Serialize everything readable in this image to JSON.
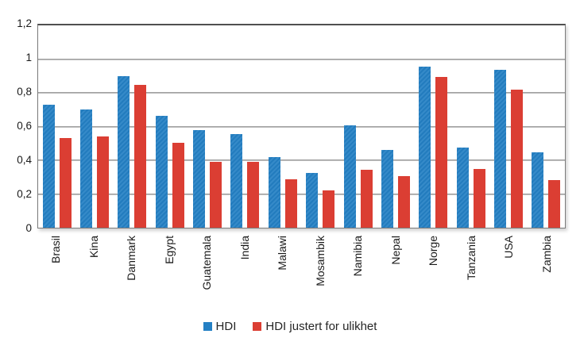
{
  "chart_data": {
    "type": "bar",
    "categories": [
      "Brasil",
      "Kina",
      "Danmark",
      "Egypt",
      "Guatemala",
      "India",
      "Malawi",
      "Mosambik",
      "Namibia",
      "Nepal",
      "Norge",
      "Tanzania",
      "USA",
      "Zambia"
    ],
    "series": [
      {
        "name": "HDI",
        "color": "#2480C4",
        "values": [
          0.73,
          0.699,
          0.901,
          0.662,
          0.581,
          0.554,
          0.418,
          0.327,
          0.608,
          0.463,
          0.955,
          0.476,
          0.937,
          0.448
        ]
      },
      {
        "name": "HDI justert for ulikhet",
        "color": "#DB3E33",
        "values": [
          0.531,
          0.543,
          0.845,
          0.503,
          0.389,
          0.392,
          0.287,
          0.22,
          0.344,
          0.304,
          0.894,
          0.346,
          0.821,
          0.283
        ]
      }
    ],
    "ylim": [
      0,
      1.2
    ],
    "ytick_labels": [
      "1,2",
      "1",
      "0,8",
      "0,6",
      "0,4",
      "0,2",
      "0"
    ],
    "grid": true,
    "legend_position": "bottom",
    "colors": {
      "grid_line": "#a2a2a2",
      "plot_border": "#7b7b7b",
      "text": "#1a1a1a"
    }
  }
}
